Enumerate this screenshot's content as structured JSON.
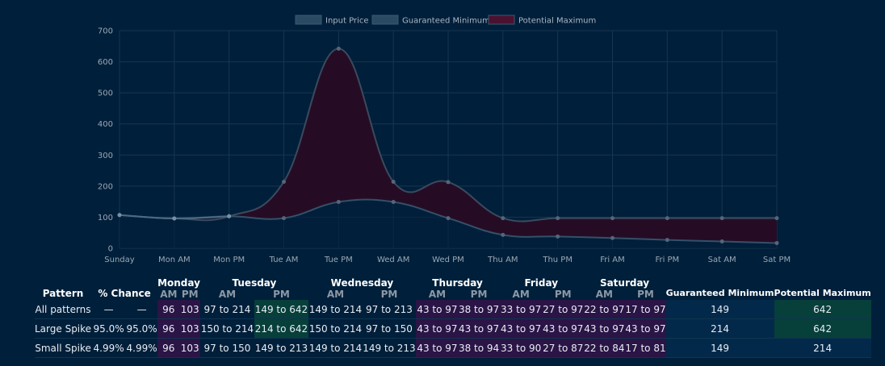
{
  "legend": [
    {
      "label": "Input Price",
      "color": "#2a4a63"
    },
    {
      "label": "Guaranteed Minimum",
      "color": "#2a4a63"
    },
    {
      "label": "Potential Maximum",
      "color": "#4a1230"
    }
  ],
  "chart_data": {
    "type": "area",
    "categories": [
      "Sunday",
      "Mon AM",
      "Mon PM",
      "Tue AM",
      "Tue PM",
      "Wed AM",
      "Wed PM",
      "Thu AM",
      "Thu PM",
      "Fri AM",
      "Fri PM",
      "Sat AM",
      "Sat PM"
    ],
    "series": [
      {
        "name": "Input Price",
        "values": [
          107,
          96,
          103,
          null,
          null,
          null,
          null,
          null,
          null,
          null,
          null,
          null,
          null
        ]
      },
      {
        "name": "Guaranteed Minimum",
        "values": [
          107,
          96,
          103,
          97,
          149,
          149,
          97,
          43,
          38,
          33,
          27,
          22,
          17
        ]
      },
      {
        "name": "Potential Maximum",
        "values": [
          107,
          96,
          103,
          214,
          642,
          214,
          213,
          97,
          97,
          97,
          97,
          97,
          97
        ]
      }
    ],
    "ylim": [
      0,
      700
    ],
    "yticks": [
      0,
      100,
      200,
      300,
      400,
      500,
      600,
      700
    ],
    "grid": true,
    "legend_position": "top-center"
  },
  "table": {
    "days": [
      "Monday",
      "Tuesday",
      "Wednesday",
      "Thursday",
      "Friday",
      "Saturday"
    ],
    "am_label": "AM",
    "pm_label": "PM",
    "headers": {
      "pattern": "Pattern",
      "chance": "% Chance",
      "guaranteed_min": "Guaranteed Minimum",
      "potential_max": "Potential Maximum"
    },
    "rows": [
      {
        "pattern": "All patterns",
        "chance1": "—",
        "chance2": "—",
        "prices": [
          "96",
          "103",
          "97 to 214",
          "149 to 642",
          "149 to 214",
          "97 to 213",
          "43 to 97",
          "38 to 97",
          "33 to 97",
          "27 to 97",
          "22 to 97",
          "17 to 97"
        ],
        "min": "149",
        "max": "642"
      },
      {
        "pattern": "Large Spike",
        "chance1": "95.0%",
        "chance2": "95.0%",
        "prices": [
          "96",
          "103",
          "150 to 214",
          "214 to 642",
          "150 to 214",
          "97 to 150",
          "43 to 97",
          "43 to 97",
          "43 to 97",
          "43 to 97",
          "43 to 97",
          "43 to 97"
        ],
        "min": "214",
        "max": "642"
      },
      {
        "pattern": "Small Spike",
        "chance1": "4.99%",
        "chance2": "4.99%",
        "prices": [
          "96",
          "103",
          "97 to 150",
          "149 to 213",
          "149 to 214",
          "149 to 213",
          "43 to 97",
          "38 to 94",
          "33 to 90",
          "27 to 87",
          "22 to 84",
          "17 to 81"
        ],
        "min": "149",
        "max": "214"
      }
    ]
  }
}
